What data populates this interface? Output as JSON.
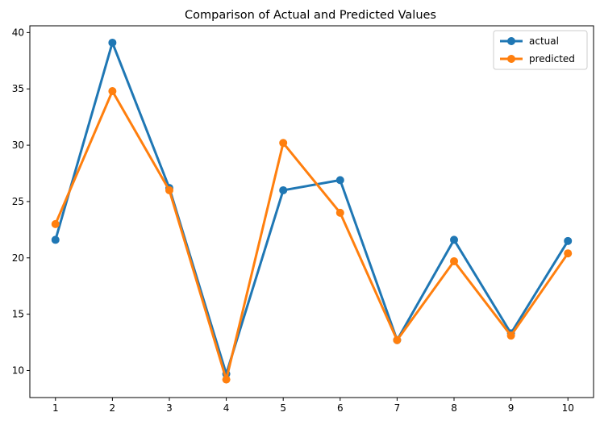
{
  "chart_data": {
    "type": "line",
    "title": "Comparison of Actual and Predicted Values",
    "xlabel": "",
    "ylabel": "",
    "x": [
      1,
      2,
      3,
      4,
      5,
      6,
      7,
      8,
      9,
      10
    ],
    "xlim": [
      0.55,
      10.45
    ],
    "ylim": [
      7.6,
      40.6
    ],
    "yticks": [
      10,
      15,
      20,
      25,
      30,
      35,
      40
    ],
    "xticks": [
      1,
      2,
      3,
      4,
      5,
      6,
      7,
      8,
      9,
      10
    ],
    "grid": false,
    "legend_position": "top-right",
    "series": [
      {
        "name": "actual",
        "color": "#1f77b4",
        "values": [
          21.6,
          39.1,
          26.2,
          9.7,
          26.0,
          26.9,
          12.7,
          21.6,
          13.3,
          21.5
        ]
      },
      {
        "name": "predicted",
        "color": "#ff7f0e",
        "values": [
          23.0,
          34.8,
          26.0,
          9.2,
          30.2,
          24.0,
          12.7,
          19.7,
          13.1,
          20.4
        ]
      }
    ]
  }
}
